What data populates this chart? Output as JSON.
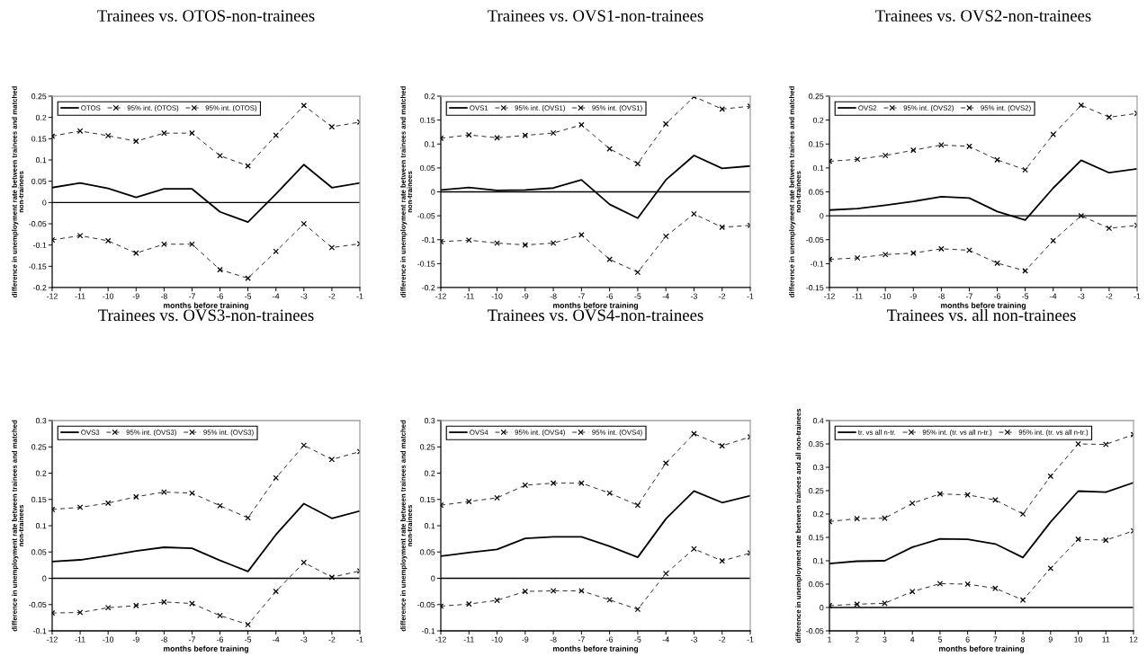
{
  "chart_data": [
    {
      "type": "line",
      "title": "Trainees vs. OTOS-non-trainees",
      "xlabel": "months before training",
      "ylabel": "difference in unemployment rate between trainees and matched\nnon-trainees",
      "x": [
        -12,
        -11,
        -10,
        -9,
        -8,
        -7,
        -6,
        -5,
        -4,
        -3,
        -2,
        -1
      ],
      "xlim": [
        -12,
        -1
      ],
      "xticks": [
        -12,
        -11,
        -10,
        -9,
        -8,
        -7,
        -6,
        -5,
        -4,
        -3,
        -2,
        -1
      ],
      "ylim": [
        -0.2,
        0.25
      ],
      "yticks": [
        -0.2,
        -0.15,
        -0.1,
        -0.05,
        0,
        0.05,
        0.1,
        0.15,
        0.2,
        0.25
      ],
      "legend": "top left",
      "series": [
        {
          "name": "OTOS",
          "color": "#000000",
          "line_style": "solid",
          "marker": "none",
          "values": [
            0.035,
            0.046,
            0.033,
            0.012,
            0.032,
            0.032,
            -0.022,
            -0.046,
            0.02,
            0.089,
            0.035,
            0.046
          ]
        },
        {
          "name": "95% int. (OTOS)",
          "color": "#000000",
          "line_style": "dashed",
          "marker": "cross",
          "values": [
            0.156,
            0.168,
            0.157,
            0.144,
            0.163,
            0.163,
            0.11,
            0.086,
            0.158,
            0.228,
            0.178,
            0.189
          ]
        },
        {
          "name": "95% int. (OTOS)",
          "color": "#000000",
          "line_style": "dashed",
          "marker": "cross",
          "values": [
            -0.088,
            -0.078,
            -0.09,
            -0.119,
            -0.098,
            -0.098,
            -0.158,
            -0.178,
            -0.115,
            -0.05,
            -0.106,
            -0.097
          ]
        }
      ],
      "ref_lines": [
        {
          "axis": "y",
          "value": 0,
          "color": "#000000"
        }
      ]
    },
    {
      "type": "line",
      "title": "Trainees vs. OVS1-non-trainees",
      "xlabel": "months before training",
      "ylabel": "difference in unemployment rate between trainees and matched\nnon-trainees",
      "x": [
        -12,
        -11,
        -10,
        -9,
        -8,
        -7,
        -6,
        -5,
        -4,
        -3,
        -2,
        -1
      ],
      "xlim": [
        -12,
        -1
      ],
      "xticks": [
        -12,
        -11,
        -10,
        -9,
        -8,
        -7,
        -6,
        -5,
        -4,
        -3,
        -2,
        -1
      ],
      "ylim": [
        -0.2,
        0.2
      ],
      "yticks": [
        -0.2,
        -0.15,
        -0.1,
        -0.05,
        0,
        0.05,
        0.1,
        0.15,
        0.2
      ],
      "legend": "top left",
      "series": [
        {
          "name": "OVS1",
          "color": "#000000",
          "line_style": "solid",
          "marker": "none",
          "values": [
            0.004,
            0.009,
            0.003,
            0.004,
            0.008,
            0.025,
            -0.026,
            -0.055,
            0.025,
            0.076,
            0.049,
            0.054
          ]
        },
        {
          "name": "95% int. (OVS1)",
          "color": "#000000",
          "line_style": "dashed",
          "marker": "cross",
          "values": [
            0.112,
            0.119,
            0.113,
            0.118,
            0.123,
            0.14,
            0.09,
            0.059,
            0.142,
            0.199,
            0.173,
            0.179
          ]
        },
        {
          "name": "95% int. (OVS1)",
          "color": "#000000",
          "line_style": "dashed",
          "marker": "cross",
          "values": [
            -0.104,
            -0.101,
            -0.107,
            -0.111,
            -0.107,
            -0.09,
            -0.141,
            -0.168,
            -0.093,
            -0.046,
            -0.074,
            -0.07
          ]
        }
      ],
      "ref_lines": [
        {
          "axis": "y",
          "value": 0,
          "color": "#000000"
        }
      ]
    },
    {
      "type": "line",
      "title": "Trainees vs. OVS2-non-trainees",
      "xlabel": "months before training",
      "ylabel": "difference in unemployment rate between trainees and matched\nnon-trainees",
      "x": [
        -12,
        -11,
        -10,
        -9,
        -8,
        -7,
        -6,
        -5,
        -4,
        -3,
        -2,
        -1
      ],
      "xlim": [
        -12,
        -1
      ],
      "xticks": [
        -12,
        -11,
        -10,
        -9,
        -8,
        -7,
        -6,
        -5,
        -4,
        -3,
        -2,
        -1
      ],
      "ylim": [
        -0.15,
        0.25
      ],
      "yticks": [
        -0.15,
        -0.1,
        -0.05,
        0,
        0.05,
        0.1,
        0.15,
        0.2,
        0.25
      ],
      "legend": "top left",
      "series": [
        {
          "name": "OVS2",
          "color": "#000000",
          "line_style": "solid",
          "marker": "none",
          "values": [
            0.012,
            0.015,
            0.022,
            0.03,
            0.04,
            0.037,
            0.009,
            -0.009,
            0.058,
            0.116,
            0.09,
            0.098
          ]
        },
        {
          "name": "95% int. (OVS2)",
          "color": "#000000",
          "line_style": "dashed",
          "marker": "cross",
          "values": [
            0.114,
            0.118,
            0.126,
            0.137,
            0.148,
            0.145,
            0.117,
            0.096,
            0.17,
            0.231,
            0.206,
            0.214
          ]
        },
        {
          "name": "95% int. (OVS2)",
          "color": "#000000",
          "line_style": "dashed",
          "marker": "cross",
          "values": [
            -0.091,
            -0.088,
            -0.081,
            -0.078,
            -0.069,
            -0.072,
            -0.099,
            -0.115,
            -0.052,
            0.0,
            -0.026,
            -0.02
          ]
        }
      ],
      "ref_lines": [
        {
          "axis": "y",
          "value": 0,
          "color": "#000000"
        }
      ]
    },
    {
      "type": "line",
      "title": "Trainees vs. OVS3-non-trainees",
      "xlabel": "months before training",
      "ylabel": "difference in unemployment rate between trainees and matched\nnon-trainees",
      "x": [
        -12,
        -11,
        -10,
        -9,
        -8,
        -7,
        -6,
        -5,
        -4,
        -3,
        -2,
        -1
      ],
      "xlim": [
        -12,
        -1
      ],
      "xticks": [
        -12,
        -11,
        -10,
        -9,
        -8,
        -7,
        -6,
        -5,
        -4,
        -3,
        -2,
        -1
      ],
      "ylim": [
        -0.1,
        0.3
      ],
      "yticks": [
        -0.1,
        -0.05,
        0,
        0.05,
        0.1,
        0.15,
        0.2,
        0.25,
        0.3
      ],
      "legend": "top left",
      "series": [
        {
          "name": "OVS3",
          "color": "#000000",
          "line_style": "solid",
          "marker": "none",
          "values": [
            0.032,
            0.035,
            0.043,
            0.052,
            0.059,
            0.057,
            0.034,
            0.013,
            0.083,
            0.142,
            0.114,
            0.128
          ]
        },
        {
          "name": "95% int. (OVS3)",
          "color": "#000000",
          "line_style": "dashed",
          "marker": "cross",
          "values": [
            0.131,
            0.135,
            0.143,
            0.155,
            0.164,
            0.162,
            0.138,
            0.115,
            0.191,
            0.253,
            0.226,
            0.241
          ]
        },
        {
          "name": "95% int. (OVS3)",
          "color": "#000000",
          "line_style": "dashed",
          "marker": "cross",
          "values": [
            -0.066,
            -0.065,
            -0.056,
            -0.052,
            -0.045,
            -0.048,
            -0.071,
            -0.088,
            -0.025,
            0.03,
            0.002,
            0.014
          ]
        }
      ],
      "ref_lines": [
        {
          "axis": "y",
          "value": 0,
          "color": "#000000"
        }
      ]
    },
    {
      "type": "line",
      "title": "Trainees vs. OVS4-non-trainees",
      "xlabel": "months before training",
      "ylabel": "difference in unemployment rate between trainees and matched\nnon-trainees",
      "x": [
        -12,
        -11,
        -10,
        -9,
        -8,
        -7,
        -6,
        -5,
        -4,
        -3,
        -2,
        -1
      ],
      "xlim": [
        -12,
        -1
      ],
      "xticks": [
        -12,
        -11,
        -10,
        -9,
        -8,
        -7,
        -6,
        -5,
        -4,
        -3,
        -2,
        -1
      ],
      "ylim": [
        -0.1,
        0.3
      ],
      "yticks": [
        -0.1,
        -0.05,
        0,
        0.05,
        0.1,
        0.15,
        0.2,
        0.25,
        0.3
      ],
      "legend": "top left",
      "series": [
        {
          "name": "OVS4",
          "color": "#000000",
          "line_style": "solid",
          "marker": "none",
          "values": [
            0.042,
            0.049,
            0.055,
            0.076,
            0.079,
            0.079,
            0.061,
            0.04,
            0.113,
            0.166,
            0.144,
            0.157
          ]
        },
        {
          "name": "95% int. (OVS4)",
          "color": "#000000",
          "line_style": "dashed",
          "marker": "cross",
          "values": [
            0.139,
            0.146,
            0.153,
            0.177,
            0.181,
            0.181,
            0.162,
            0.139,
            0.219,
            0.275,
            0.252,
            0.269
          ]
        },
        {
          "name": "95% int. (OVS4)",
          "color": "#000000",
          "line_style": "dashed",
          "marker": "cross",
          "values": [
            -0.053,
            -0.049,
            -0.042,
            -0.025,
            -0.024,
            -0.024,
            -0.041,
            -0.059,
            0.009,
            0.056,
            0.033,
            0.048
          ]
        }
      ],
      "ref_lines": [
        {
          "axis": "y",
          "value": 0,
          "color": "#000000"
        }
      ]
    },
    {
      "type": "line",
      "title": "Trainees vs. all non-trainees",
      "xlabel": "months before training",
      "ylabel": "difference in unemployment rate between trainees and all non-trainees",
      "x": [
        1,
        2,
        3,
        4,
        5,
        6,
        7,
        8,
        9,
        10,
        11,
        12
      ],
      "xlim": [
        1,
        12
      ],
      "xticks": [
        1,
        2,
        3,
        4,
        5,
        6,
        7,
        8,
        9,
        10,
        11,
        12
      ],
      "ylim": [
        -0.05,
        0.4
      ],
      "yticks": [
        -0.05,
        0,
        0.05,
        0.1,
        0.15,
        0.2,
        0.25,
        0.3,
        0.35,
        0.4
      ],
      "legend": "top left",
      "series": [
        {
          "name": "tr. vs all n-tr.",
          "color": "#000000",
          "line_style": "solid",
          "marker": "none",
          "values": [
            0.094,
            0.099,
            0.1,
            0.129,
            0.147,
            0.146,
            0.136,
            0.107,
            0.183,
            0.249,
            0.247,
            0.267
          ]
        },
        {
          "name": "95% int. (tr. vs all n-tr.)",
          "color": "#000000",
          "line_style": "dashed",
          "marker": "cross",
          "values": [
            0.184,
            0.19,
            0.191,
            0.223,
            0.243,
            0.241,
            0.23,
            0.2,
            0.281,
            0.35,
            0.349,
            0.37
          ]
        },
        {
          "name": "95% int. (tr. vs all n-tr.)",
          "color": "#000000",
          "line_style": "dashed",
          "marker": "cross",
          "values": [
            0.004,
            0.007,
            0.009,
            0.034,
            0.051,
            0.05,
            0.041,
            0.016,
            0.084,
            0.146,
            0.144,
            0.164
          ]
        }
      ],
      "ref_lines": [
        {
          "axis": "y",
          "value": 0,
          "color": "#000000"
        }
      ]
    }
  ]
}
